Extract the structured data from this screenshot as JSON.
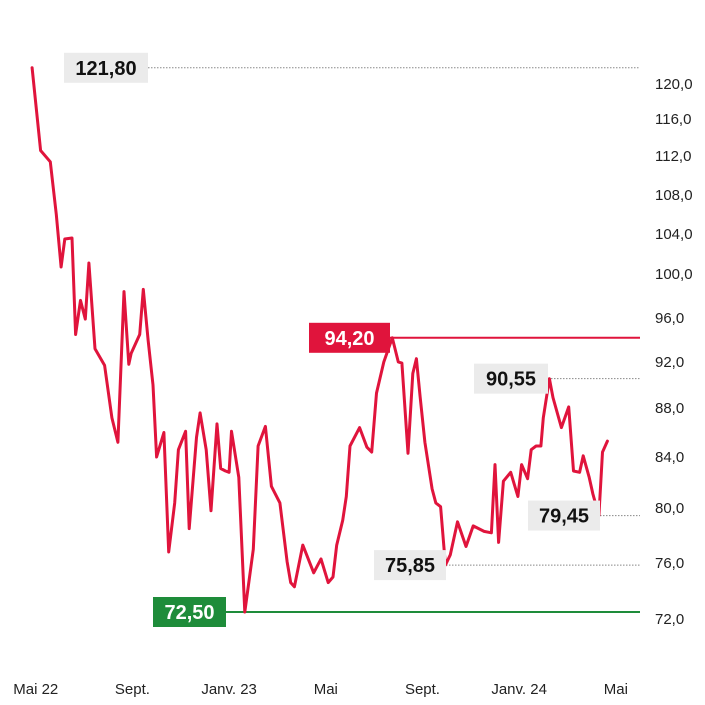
{
  "chart_data": {
    "type": "line",
    "y_axis_side": "right",
    "ylim": [
      70.0,
      124.0
    ],
    "y_ticks": [
      {
        "value": 72,
        "label": "72,0"
      },
      {
        "value": 76,
        "label": "76,0"
      },
      {
        "value": 80,
        "label": "80,0"
      },
      {
        "value": 84,
        "label": "84,0"
      },
      {
        "value": 88,
        "label": "88,0"
      },
      {
        "value": 92,
        "label": "92,0"
      },
      {
        "value": 96,
        "label": "96,0"
      },
      {
        "value": 100,
        "label": "100,0"
      },
      {
        "value": 104,
        "label": "104,0"
      },
      {
        "value": 108,
        "label": "108,0"
      },
      {
        "value": 112,
        "label": "112,0"
      },
      {
        "value": 116,
        "label": "116,0"
      },
      {
        "value": 120,
        "label": "120,0"
      }
    ],
    "x_ticks": [
      {
        "value": 0,
        "label": "Mai 22"
      },
      {
        "value": 4,
        "label": "Sept."
      },
      {
        "value": 8,
        "label": "Janv. 23"
      },
      {
        "value": 12,
        "label": "Mai"
      },
      {
        "value": 16,
        "label": "Sept."
      },
      {
        "value": 20,
        "label": "Janv. 24"
      },
      {
        "value": 24,
        "label": "Mai"
      }
    ],
    "xlim": [
      -0.9,
      25.0
    ],
    "grid": false,
    "colors": {
      "line": "#e0143c",
      "high": "#e0143c",
      "low": "#1e8c3a",
      "label_bg": "#ebebeb",
      "ref_line": "#888888"
    },
    "series": [
      {
        "x": [
          -0.15,
          0.2,
          0.6,
          0.85,
          1.05,
          1.2,
          1.5,
          1.65,
          1.85,
          2.05,
          2.2,
          2.45,
          2.85,
          3.15,
          3.4,
          3.65,
          3.85,
          3.95,
          4.3,
          4.45,
          4.65,
          4.85,
          5.0,
          5.3,
          5.5,
          5.75,
          5.9,
          6.2,
          6.35,
          6.65,
          6.8,
          7.05,
          7.25,
          7.5,
          7.65,
          7.85,
          8.0,
          8.1,
          8.4,
          8.65,
          9.0,
          9.2,
          9.5,
          9.75,
          10.1,
          10.4,
          10.55,
          10.7,
          11.05,
          11.5,
          11.8,
          12.1,
          12.3,
          12.45,
          12.7,
          12.85,
          13.0,
          13.4,
          13.7,
          13.9,
          14.1,
          14.4,
          14.75,
          15.0,
          15.15,
          15.4,
          15.6,
          15.75,
          15.9,
          16.1,
          16.4,
          16.55,
          16.75,
          16.95,
          17.15,
          17.45,
          17.8,
          18.1,
          18.55,
          18.85,
          19.0,
          19.15,
          19.35,
          19.65,
          19.95,
          20.1,
          20.35,
          20.5,
          20.7,
          20.9,
          21.0,
          21.25,
          21.4,
          21.75,
          22.05,
          22.25,
          22.5,
          22.65,
          22.9,
          23.05,
          23.3,
          23.45,
          23.65,
          24.15,
          24.35
        ],
        "values": [
          121.8,
          112.6,
          111.4,
          106.0,
          100.7,
          103.5,
          103.6,
          94.5,
          97.6,
          95.9,
          101.1,
          93.2,
          91.7,
          87.2,
          85.2,
          98.4,
          91.8,
          92.8,
          94.5,
          98.6,
          94.0,
          90.0,
          84.0,
          86.0,
          76.8,
          80.4,
          84.6,
          86.1,
          78.5,
          85.6,
          87.6,
          84.6,
          79.8,
          86.7,
          83.1,
          82.9,
          82.8,
          86.1,
          82.4,
          72.5,
          77.0,
          84.9,
          86.5,
          81.7,
          80.4,
          76.1,
          74.6,
          74.3,
          77.3,
          75.3,
          76.3,
          74.6,
          75.0,
          77.3,
          79.1,
          80.9,
          84.9,
          86.4,
          84.8,
          84.4,
          89.3,
          92.0,
          94.2,
          92.0,
          91.9,
          84.3,
          91.0,
          92.3,
          89.0,
          85.2,
          81.5,
          80.4,
          80.1,
          75.85,
          76.6,
          79.0,
          77.2,
          78.7,
          78.3,
          78.2,
          83.4,
          77.5,
          82.1,
          82.8,
          80.9,
          83.4,
          82.3,
          84.6,
          84.9,
          84.9,
          87.2,
          90.55,
          88.9,
          86.4,
          88.1,
          82.9,
          82.8,
          84.1,
          82.4,
          81.1,
          79.45,
          84.4,
          85.3,
          null,
          null
        ],
        "label_note": "single series, no legend"
      }
    ],
    "annotations": [
      {
        "value": 121.8,
        "label": "121,80",
        "style": "neutral",
        "line": "dotted"
      },
      {
        "value": 94.2,
        "label": "94,20",
        "style": "high",
        "line": "solid"
      },
      {
        "value": 90.55,
        "label": "90,55",
        "style": "neutral",
        "line": "dotted"
      },
      {
        "value": 79.45,
        "label": "79,45",
        "style": "neutral",
        "line": "dotted"
      },
      {
        "value": 75.85,
        "label": "75,85",
        "style": "neutral",
        "line": "dotted"
      },
      {
        "value": 72.5,
        "label": "72,50",
        "style": "low",
        "line": "solid"
      }
    ]
  }
}
